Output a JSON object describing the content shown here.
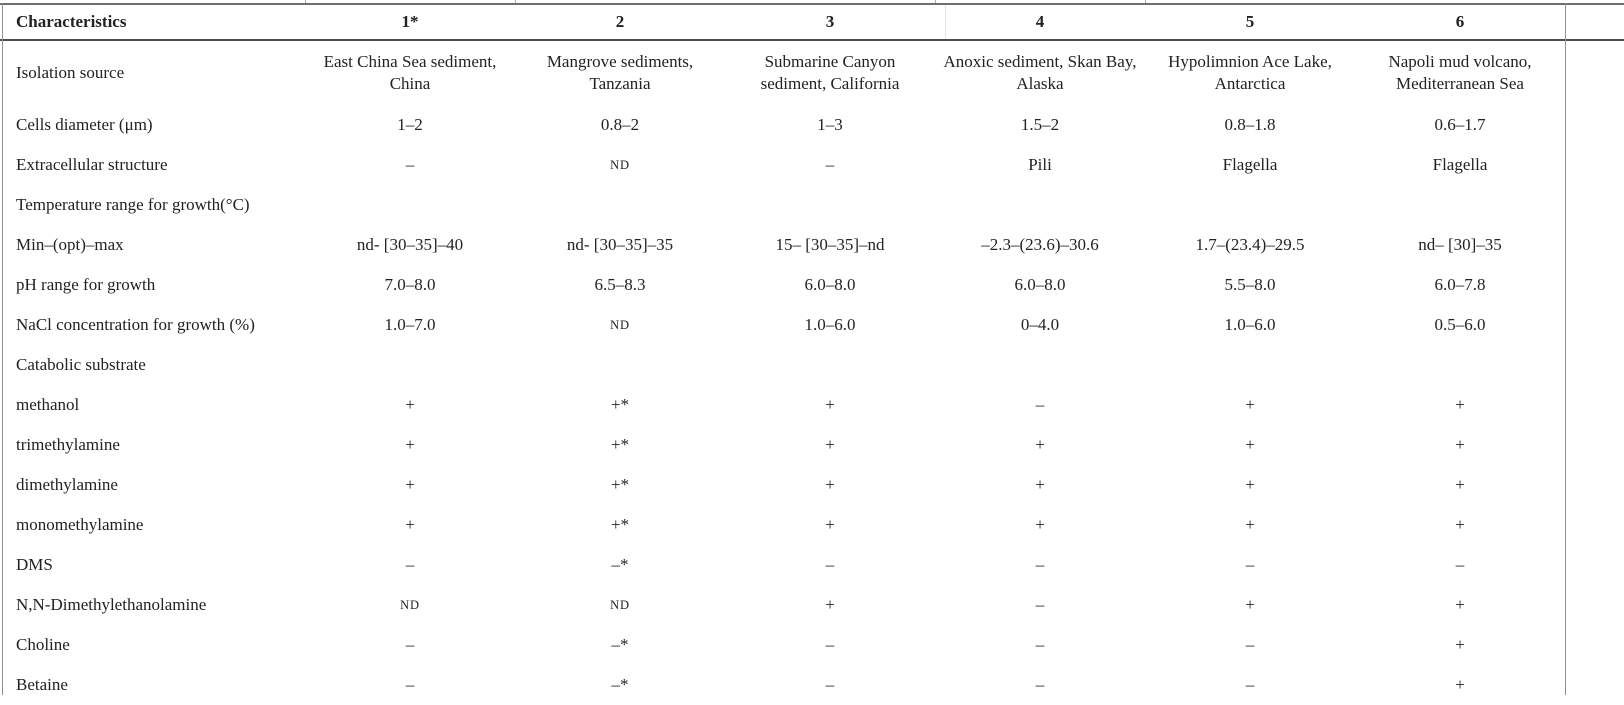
{
  "style_tokens": {
    "small_caps_token": "ND",
    "text_color": "#222222",
    "rule_color": "#4d4d4d",
    "background": "#ffffff"
  },
  "table": {
    "header": {
      "label": "Characteristics",
      "columns": [
        "1*",
        "2",
        "3",
        "4",
        "5",
        "6"
      ]
    },
    "rows": [
      {
        "type": "data",
        "label": "Isolation source",
        "values": [
          "East China Sea sediment, China",
          "Mangrove sediments, Tanzania",
          "Submarine Canyon sediment, California",
          "Anoxic sediment, Skan Bay, Alaska",
          "Hypolimnion Ace Lake, Antarctica",
          "Napoli mud volcano, Mediterranean Sea"
        ]
      },
      {
        "type": "data",
        "label": "Cells diameter (μm)",
        "values": [
          "1–2",
          "0.8–2",
          "1–3",
          "1.5–2",
          "0.8–1.8",
          "0.6–1.7"
        ]
      },
      {
        "type": "data",
        "label": "Extracellular structure",
        "values": [
          "–",
          "ND",
          "–",
          "Pili",
          "Flagella",
          "Flagella"
        ]
      },
      {
        "type": "section",
        "label": "Temperature range for growth(°C)",
        "values": [
          "",
          "",
          "",
          "",
          "",
          ""
        ]
      },
      {
        "type": "data",
        "label": "Min–(opt)–max",
        "values": [
          "nd- [30–35]–40",
          "nd- [30–35]–35",
          "15– [30–35]–nd",
          "–2.3–(23.6)–30.6",
          "1.7–(23.4)–29.5",
          "nd– [30]–35"
        ]
      },
      {
        "type": "data",
        "label": "pH range for growth",
        "values": [
          "7.0–8.0",
          "6.5–8.3",
          "6.0–8.0",
          "6.0–8.0",
          "5.5–8.0",
          "6.0–7.8"
        ]
      },
      {
        "type": "data",
        "label": "NaCl concentration for growth (%)",
        "values": [
          "1.0–7.0",
          "ND",
          "1.0–6.0",
          "0–4.0",
          "1.0–6.0",
          "0.5–6.0"
        ]
      },
      {
        "type": "section",
        "label": "Catabolic substrate",
        "values": [
          "",
          "",
          "",
          "",
          "",
          ""
        ]
      },
      {
        "type": "data",
        "label": "methanol",
        "values": [
          "+",
          "+*",
          "+",
          "–",
          "+",
          "+"
        ]
      },
      {
        "type": "data",
        "label": "trimethylamine",
        "values": [
          "+",
          "+*",
          "+",
          "+",
          "+",
          "+"
        ]
      },
      {
        "type": "data",
        "label": "dimethylamine",
        "values": [
          "+",
          "+*",
          "+",
          "+",
          "+",
          "+"
        ]
      },
      {
        "type": "data",
        "label": "monomethylamine",
        "values": [
          "+",
          "+*",
          "+",
          "+",
          "+",
          "+"
        ]
      },
      {
        "type": "data",
        "label": "DMS",
        "values": [
          "–",
          "–*",
          "–",
          "–",
          "–",
          "–"
        ]
      },
      {
        "type": "data",
        "label": "N,N-Dimethylethanolamine",
        "values": [
          "ND",
          "ND",
          "+",
          "–",
          "+",
          "+"
        ]
      },
      {
        "type": "data",
        "label": "Choline",
        "values": [
          "–",
          "–*",
          "–",
          "–",
          "–",
          "+"
        ]
      },
      {
        "type": "data",
        "label": "Betaine",
        "values": [
          "–",
          "–*",
          "–",
          "–",
          "–",
          "+"
        ]
      }
    ]
  }
}
